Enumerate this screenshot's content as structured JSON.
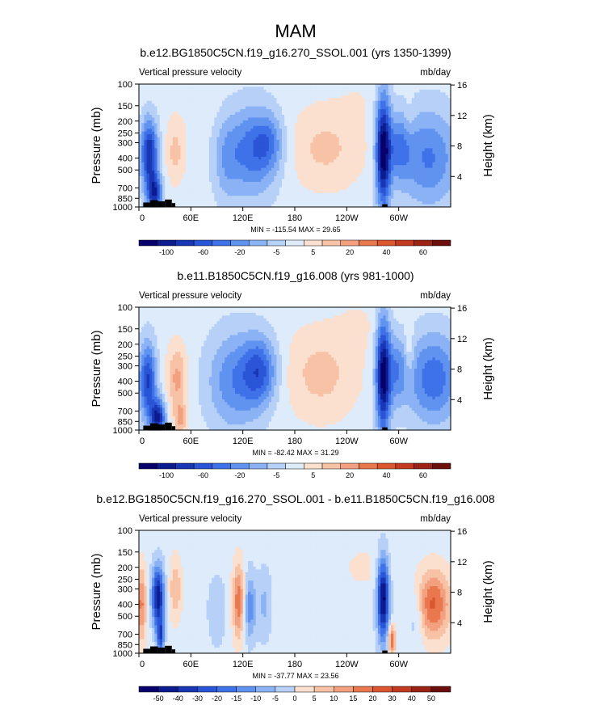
{
  "figure": {
    "title": "MAM",
    "left_label": "Vertical pressure velocity",
    "right_label": "mb/day",
    "left_axis_label": "Pressure (mb)",
    "right_axis_label": "Height (km)"
  },
  "colors": {
    "ramp": [
      "#08006b",
      "#0c1c8f",
      "#1936b5",
      "#2a55d6",
      "#3f72e8",
      "#6092ef",
      "#8bb2f4",
      "#b6d0f7",
      "#ddebfb",
      "#fbe0cf",
      "#f8c2a6",
      "#f2a07f",
      "#e9784f",
      "#dc5630",
      "#c23a1f",
      "#9b2414",
      "#6b0f0c"
    ],
    "topography": "#000000"
  },
  "chart_data": [
    {
      "type": "heatmap",
      "subtitle": "b.e12.BG1850C5CN.f19_g16.270_SSOL.001 (yrs 1350-1399)",
      "stats": "MIN = -115.54  MAX =  29.65",
      "x_tick_labels": [
        "0",
        "60E",
        "120E",
        "180",
        "120W",
        "60W"
      ],
      "x_tick_lon": [
        0,
        60,
        120,
        180,
        240,
        300
      ],
      "xlim": [
        0,
        360
      ],
      "y_tick_labels": [
        "100",
        "150",
        "200",
        "250",
        "300",
        "400",
        "500",
        "700",
        "850",
        "1000"
      ],
      "y_ticks": [
        100,
        150,
        200,
        250,
        300,
        400,
        500,
        700,
        850,
        1000
      ],
      "ylim": [
        1000,
        100
      ],
      "y_scale": "log",
      "height_ticks_km": [
        4,
        8,
        12,
        16
      ],
      "colorbar_labels": [
        "-100",
        "-60",
        "-20",
        "-5",
        "5",
        "20",
        "40",
        "60"
      ],
      "features": [
        {
          "lon": 12,
          "p": 370,
          "sx": 7,
          "sy": 0.45,
          "v": -90
        },
        {
          "lon": 18,
          "p": 780,
          "sx": 6,
          "sy": 0.25,
          "v": -80
        },
        {
          "lon": 42,
          "p": 360,
          "sx": 8,
          "sy": 0.4,
          "v": 25
        },
        {
          "lon": 100,
          "p": 420,
          "sx": 10,
          "sy": 0.6,
          "v": -20
        },
        {
          "lon": 130,
          "p": 350,
          "sx": 22,
          "sy": 0.6,
          "v": -55
        },
        {
          "lon": 150,
          "p": 300,
          "sx": 12,
          "sy": 0.35,
          "v": -30
        },
        {
          "lon": 215,
          "p": 330,
          "sx": 32,
          "sy": 0.55,
          "v": 24
        },
        {
          "lon": 70,
          "p": 160,
          "sx": 30,
          "sy": 0.4,
          "v": 4
        },
        {
          "lon": 255,
          "p": 130,
          "sx": 18,
          "sy": 0.3,
          "v": 5
        },
        {
          "lon": 282,
          "p": 350,
          "sx": 6,
          "sy": 0.75,
          "v": -110
        },
        {
          "lon": 300,
          "p": 330,
          "sx": 10,
          "sy": 0.45,
          "v": -40
        },
        {
          "lon": 335,
          "p": 400,
          "sx": 24,
          "sy": 0.65,
          "v": -50
        },
        {
          "lon": 312,
          "p": 190,
          "sx": 4,
          "sy": 0.3,
          "v": 10
        }
      ],
      "topography": [
        [
          5,
          13,
          920
        ],
        [
          13,
          22,
          880
        ],
        [
          22,
          30,
          900
        ],
        [
          30,
          38,
          870
        ],
        [
          38,
          42,
          930
        ],
        [
          281,
          287,
          950
        ]
      ]
    },
    {
      "type": "heatmap",
      "subtitle": "b.e11.B1850C5CN.f19_g16.008 (yrs 981-1000)",
      "stats": "MIN = -82.42  MAX =  31.29",
      "x_tick_labels": [
        "0",
        "60E",
        "120E",
        "180",
        "120W",
        "60W"
      ],
      "x_tick_lon": [
        0,
        60,
        120,
        180,
        240,
        300
      ],
      "xlim": [
        0,
        360
      ],
      "y_tick_labels": [
        "100",
        "150",
        "200",
        "250",
        "300",
        "400",
        "500",
        "700",
        "850",
        "1000"
      ],
      "y_ticks": [
        100,
        150,
        200,
        250,
        300,
        400,
        500,
        700,
        850,
        1000
      ],
      "ylim": [
        1000,
        100
      ],
      "y_scale": "log",
      "height_ticks_km": [
        4,
        8,
        12,
        16
      ],
      "colorbar_labels": [
        "-100",
        "-60",
        "-20",
        "-5",
        "5",
        "20",
        "40",
        "60"
      ],
      "features": [
        {
          "lon": 10,
          "p": 400,
          "sx": 7,
          "sy": 0.5,
          "v": -60
        },
        {
          "lon": 22,
          "p": 800,
          "sx": 6,
          "sy": 0.25,
          "v": -70
        },
        {
          "lon": 44,
          "p": 380,
          "sx": 8,
          "sy": 0.45,
          "v": 30
        },
        {
          "lon": 48,
          "p": 820,
          "sx": 5,
          "sy": 0.2,
          "v": 28
        },
        {
          "lon": 110,
          "p": 400,
          "sx": 22,
          "sy": 0.65,
          "v": -35
        },
        {
          "lon": 140,
          "p": 330,
          "sx": 14,
          "sy": 0.45,
          "v": -45
        },
        {
          "lon": 210,
          "p": 350,
          "sx": 30,
          "sy": 0.6,
          "v": 20
        },
        {
          "lon": 255,
          "p": 140,
          "sx": 20,
          "sy": 0.35,
          "v": 6
        },
        {
          "lon": 282,
          "p": 360,
          "sx": 6,
          "sy": 0.75,
          "v": -85
        },
        {
          "lon": 298,
          "p": 330,
          "sx": 8,
          "sy": 0.45,
          "v": -30
        },
        {
          "lon": 340,
          "p": 380,
          "sx": 22,
          "sy": 0.6,
          "v": -45
        },
        {
          "lon": 312,
          "p": 230,
          "sx": 4,
          "sy": 0.35,
          "v": 15
        }
      ],
      "topography": [
        [
          5,
          13,
          920
        ],
        [
          13,
          22,
          880
        ],
        [
          22,
          30,
          900
        ],
        [
          30,
          38,
          870
        ],
        [
          38,
          42,
          930
        ],
        [
          281,
          287,
          950
        ]
      ]
    },
    {
      "type": "heatmap",
      "subtitle": "b.e12.BG1850C5CN.f19_g16.270_SSOL.001 - b.e11.B1850C5CN.f19_g16.008",
      "stats": "MIN = -37.77  MAX =  23.56",
      "x_tick_labels": [
        "0",
        "60E",
        "120E",
        "180",
        "120W",
        "60W"
      ],
      "x_tick_lon": [
        0,
        60,
        120,
        180,
        240,
        300
      ],
      "xlim": [
        0,
        360
      ],
      "y_tick_labels": [
        "100",
        "150",
        "200",
        "250",
        "300",
        "400",
        "500",
        "700",
        "850",
        "1000"
      ],
      "y_ticks": [
        100,
        150,
        200,
        250,
        300,
        400,
        500,
        700,
        850,
        1000
      ],
      "ylim": [
        1000,
        100
      ],
      "y_scale": "log",
      "height_ticks_km": [
        4,
        8,
        12,
        16
      ],
      "colorbar_labels": [
        "-50",
        "-40",
        "-30",
        "-20",
        "-15",
        "-10",
        "-5",
        "0",
        "5",
        "10",
        "15",
        "20",
        "30",
        "40",
        "50"
      ],
      "features": [
        {
          "lon": 3,
          "p": 400,
          "sx": 4,
          "sy": 0.5,
          "v": 18
        },
        {
          "lon": 22,
          "p": 350,
          "sx": 5,
          "sy": 0.4,
          "v": -35
        },
        {
          "lon": 25,
          "p": 720,
          "sx": 3,
          "sy": 0.2,
          "v": -25
        },
        {
          "lon": 42,
          "p": 300,
          "sx": 5,
          "sy": 0.4,
          "v": 12
        },
        {
          "lon": 90,
          "p": 450,
          "sx": 8,
          "sy": 0.5,
          "v": -6
        },
        {
          "lon": 115,
          "p": 380,
          "sx": 5,
          "sy": 0.5,
          "v": 20
        },
        {
          "lon": 128,
          "p": 420,
          "sx": 5,
          "sy": 0.45,
          "v": -15
        },
        {
          "lon": 145,
          "p": 400,
          "sx": 6,
          "sy": 0.5,
          "v": -8
        },
        {
          "lon": 260,
          "p": 200,
          "sx": 25,
          "sy": 0.4,
          "v": 3
        },
        {
          "lon": 282,
          "p": 360,
          "sx": 5,
          "sy": 0.55,
          "v": -38
        },
        {
          "lon": 292,
          "p": 780,
          "sx": 3,
          "sy": 0.2,
          "v": 23
        },
        {
          "lon": 340,
          "p": 400,
          "sx": 14,
          "sy": 0.45,
          "v": 22
        },
        {
          "lon": 320,
          "p": 500,
          "sx": 6,
          "sy": 0.4,
          "v": -8
        }
      ],
      "topography": [
        [
          5,
          13,
          920
        ],
        [
          13,
          22,
          880
        ],
        [
          22,
          30,
          900
        ],
        [
          30,
          38,
          870
        ],
        [
          38,
          42,
          930
        ],
        [
          281,
          287,
          950
        ]
      ]
    }
  ]
}
